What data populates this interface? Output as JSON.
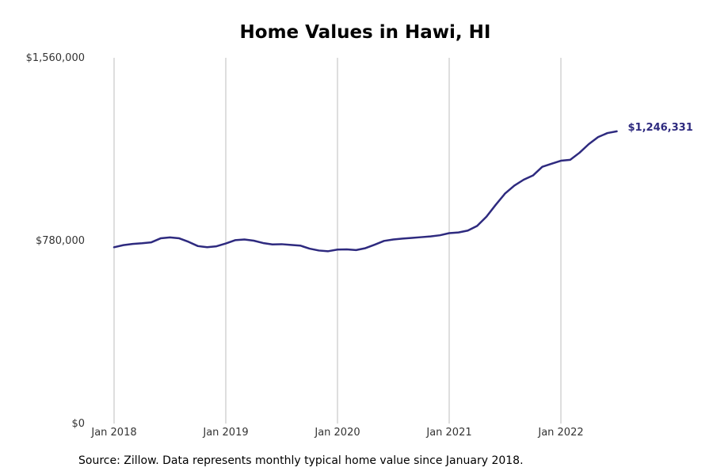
{
  "chart_data": {
    "type": "line",
    "title": "Home Values in Hawi, HI",
    "xlabel": "",
    "ylabel": "",
    "ylim": [
      0,
      1560000
    ],
    "y_ticks": [
      {
        "value": 0,
        "label": "$0"
      },
      {
        "value": 780000,
        "label": "$780,000"
      },
      {
        "value": 1560000,
        "label": "$1,560,000"
      }
    ],
    "x_ticks": [
      {
        "value": 0,
        "label": "Jan 2018"
      },
      {
        "value": 12,
        "label": "Jan 2019"
      },
      {
        "value": 24,
        "label": "Jan 2020"
      },
      {
        "value": 36,
        "label": "Jan 2021"
      },
      {
        "value": 48,
        "label": "Jan 2022"
      }
    ],
    "vertical_grid": true,
    "horizontal_grid": false,
    "line_color": "#2e2a7f",
    "end_label": "$1,246,331",
    "series": [
      {
        "values": [
          752000,
          761000,
          766000,
          769000,
          773000,
          790000,
          794000,
          790000,
          775000,
          757000,
          752000,
          756000,
          768000,
          782000,
          785000,
          780000,
          770000,
          764000,
          765000,
          762000,
          759000,
          746000,
          738000,
          735000,
          742000,
          743000,
          740000,
          748000,
          763000,
          779000,
          785000,
          789000,
          792000,
          795000,
          798000,
          803000,
          812000,
          815000,
          823000,
          843000,
          882000,
          933000,
          981000,
          1015000,
          1040000,
          1058000,
          1095000,
          1108000,
          1121000,
          1125000,
          1155000,
          1192000,
          1222000,
          1239000,
          1246331
        ]
      }
    ]
  },
  "source_note": "Source: Zillow. Data represents monthly typical home value since January 2018."
}
